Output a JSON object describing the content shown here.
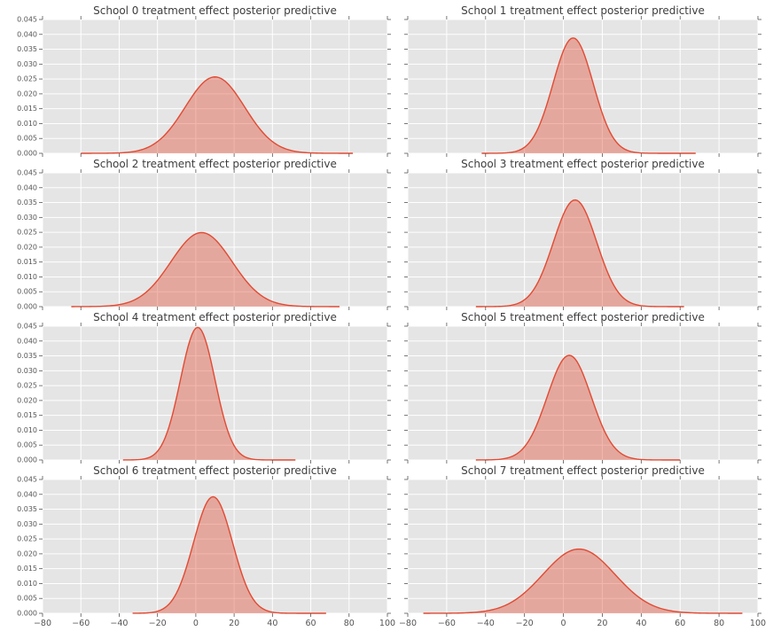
{
  "figure": {
    "background": "#ffffff",
    "axes_background": "#e5e5e5",
    "grid_color": "#ffffff",
    "line_color": "#e24a33",
    "fill_opacity": 0.4,
    "tick_color": "#555555",
    "title_color": "#3d3d3d"
  },
  "axes": {
    "xlim": [
      -80,
      100
    ],
    "ylim": [
      0,
      0.045
    ],
    "x_ticks": [
      -80,
      -60,
      -40,
      -20,
      0,
      20,
      40,
      60,
      80,
      100
    ],
    "x_tick_labels": [
      "−80",
      "−60",
      "−40",
      "−20",
      "0",
      "20",
      "40",
      "60",
      "80",
      "100"
    ],
    "y_ticks": [
      0,
      0.005,
      0.01,
      0.015,
      0.02,
      0.025,
      0.03,
      0.035,
      0.04,
      0.045
    ],
    "y_tick_labels": [
      "0.000",
      "0.005",
      "0.010",
      "0.015",
      "0.020",
      "0.025",
      "0.030",
      "0.035",
      "0.040",
      "0.045"
    ]
  },
  "chart_data": [
    {
      "type": "area",
      "title": "School 0 treatment effect posterior predictive",
      "series": [
        {
          "name": "posterior predictive density",
          "mean": 10,
          "sd": 15.5,
          "peak": 0.0257,
          "x_range": [
            -60,
            82
          ]
        }
      ]
    },
    {
      "type": "area",
      "title": "School 1 treatment effect posterior predictive",
      "series": [
        {
          "name": "posterior predictive density",
          "mean": 5,
          "sd": 10.3,
          "peak": 0.0388,
          "x_range": [
            -42,
            68
          ]
        }
      ]
    },
    {
      "type": "area",
      "title": "School 2 treatment effect posterior predictive",
      "series": [
        {
          "name": "posterior predictive density",
          "mean": 3,
          "sd": 16.0,
          "peak": 0.0249,
          "x_range": [
            -65,
            75
          ]
        }
      ]
    },
    {
      "type": "area",
      "title": "School 3 treatment effect posterior predictive",
      "series": [
        {
          "name": "posterior predictive density",
          "mean": 6,
          "sd": 11.1,
          "peak": 0.0359,
          "x_range": [
            -45,
            62
          ]
        }
      ]
    },
    {
      "type": "area",
      "title": "School 4 treatment effect posterior predictive",
      "series": [
        {
          "name": "posterior predictive density",
          "mean": 1,
          "sd": 9.0,
          "peak": 0.0446,
          "x_range": [
            -38,
            52
          ]
        }
      ]
    },
    {
      "type": "area",
      "title": "School 5 treatment effect posterior predictive",
      "series": [
        {
          "name": "posterior predictive density",
          "mean": 3,
          "sd": 11.3,
          "peak": 0.0352,
          "x_range": [
            -45,
            60
          ]
        }
      ]
    },
    {
      "type": "area",
      "title": "School 6 treatment effect posterior predictive",
      "series": [
        {
          "name": "posterior predictive density",
          "mean": 9,
          "sd": 10.2,
          "peak": 0.0392,
          "x_range": [
            -33,
            68
          ]
        }
      ]
    },
    {
      "type": "area",
      "title": "School 7 treatment effect posterior predictive",
      "series": [
        {
          "name": "posterior predictive density",
          "mean": 8,
          "sd": 18.5,
          "peak": 0.0216,
          "x_range": [
            -72,
            92
          ]
        }
      ]
    }
  ]
}
